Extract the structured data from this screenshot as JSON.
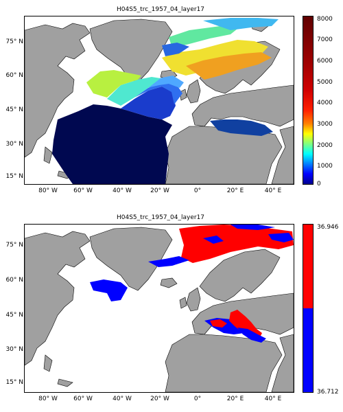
{
  "maps": [
    {
      "title": "H04S5_trc_1957_04_layer17",
      "lat_labels": [
        {
          "text": "75° N",
          "lat": 75
        },
        {
          "text": "60° N",
          "lat": 60
        },
        {
          "text": "45° N",
          "lat": 45
        },
        {
          "text": "30° N",
          "lat": 30
        },
        {
          "text": "15° N",
          "lat": 15
        }
      ],
      "lon_labels": [
        {
          "text": "80° W",
          "lon": -80
        },
        {
          "text": "60° W",
          "lon": -60
        },
        {
          "text": "40° W",
          "lon": -40
        },
        {
          "text": "20° W",
          "lon": -20
        },
        {
          "text": "0°",
          "lon": 0
        },
        {
          "text": "20° E",
          "lon": 20
        },
        {
          "text": "40° E",
          "lon": 40
        }
      ],
      "colorbar": {
        "type": "continuous",
        "ticks": [
          "8000",
          "7000",
          "6000",
          "5000",
          "4000",
          "3000",
          "2000",
          "1000",
          "0"
        ],
        "range": [
          0,
          8000
        ]
      }
    },
    {
      "title": "H04S5_trc_1957_04_layer17",
      "lat_labels": [
        {
          "text": "75° N",
          "lat": 75
        },
        {
          "text": "60° N",
          "lat": 60
        },
        {
          "text": "45° N",
          "lat": 45
        },
        {
          "text": "30° N",
          "lat": 30
        },
        {
          "text": "15° N",
          "lat": 15
        }
      ],
      "lon_labels": [
        {
          "text": "80° W",
          "lon": -80
        },
        {
          "text": "60° W",
          "lon": -60
        },
        {
          "text": "40° W",
          "lon": -40
        },
        {
          "text": "20° W",
          "lon": -20
        },
        {
          "text": "0°",
          "lon": 0
        },
        {
          "text": "20° E",
          "lon": 20
        },
        {
          "text": "40° E",
          "lon": 40
        }
      ],
      "colorbar": {
        "type": "binary",
        "ticks": [
          "36.946",
          "36.712"
        ],
        "colors": [
          "#ff0000",
          "#0000ff"
        ]
      }
    }
  ],
  "colors": {
    "land": "#a0a0a0",
    "ocean": "#ffffff",
    "deep": "#000850",
    "red": "#ff0000",
    "blue": "#0000ff"
  }
}
